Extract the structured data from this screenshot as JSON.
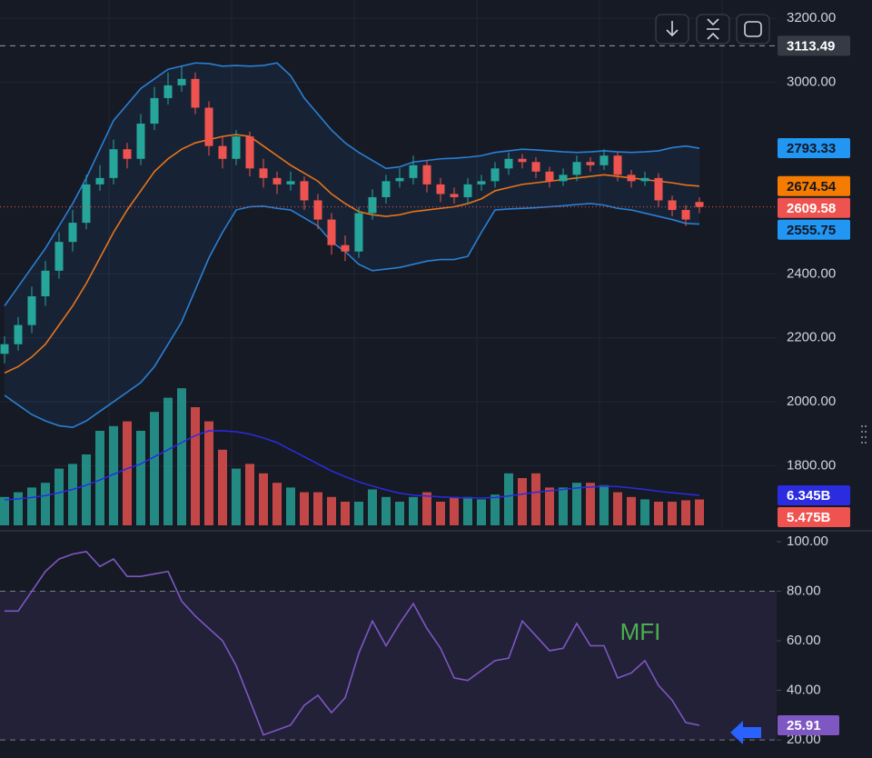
{
  "chart_data": {
    "type": "candlestick",
    "candles": {
      "up_color": "#26a69a",
      "down_color": "#ef5350",
      "open": [
        2150,
        2180,
        2240,
        2330,
        2410,
        2500,
        2560,
        2680,
        2700,
        2790,
        2760,
        2870,
        2950,
        2990,
        3010,
        2920,
        2800,
        2760,
        2830,
        2730,
        2700,
        2680,
        2690,
        2630,
        2570,
        2490,
        2470,
        2590,
        2640,
        2690,
        2700,
        2740,
        2680,
        2650,
        2640,
        2680,
        2690,
        2730,
        2760,
        2750,
        2720,
        2690,
        2710,
        2750,
        2740,
        2770,
        2710,
        2690,
        2700,
        2630,
        2600,
        2625
      ],
      "high": [
        2205,
        2265,
        2360,
        2440,
        2530,
        2600,
        2710,
        2740,
        2820,
        2810,
        2900,
        2985,
        3030,
        3050,
        3030,
        2940,
        2830,
        2850,
        2845,
        2760,
        2720,
        2720,
        2705,
        2650,
        2590,
        2520,
        2610,
        2665,
        2710,
        2730,
        2770,
        2755,
        2700,
        2670,
        2700,
        2710,
        2750,
        2780,
        2775,
        2765,
        2735,
        2730,
        2770,
        2765,
        2790,
        2780,
        2725,
        2720,
        2715,
        2645,
        2615,
        2640
      ],
      "low": [
        2120,
        2160,
        2215,
        2300,
        2385,
        2470,
        2540,
        2660,
        2680,
        2730,
        2740,
        2850,
        2930,
        2970,
        2900,
        2770,
        2730,
        2740,
        2705,
        2670,
        2650,
        2660,
        2600,
        2540,
        2460,
        2440,
        2450,
        2570,
        2620,
        2670,
        2680,
        2655,
        2625,
        2620,
        2620,
        2660,
        2670,
        2710,
        2730,
        2700,
        2670,
        2675,
        2690,
        2720,
        2725,
        2690,
        2670,
        2675,
        2610,
        2580,
        2550,
        2590
      ],
      "close": [
        2180,
        2240,
        2330,
        2410,
        2500,
        2560,
        2680,
        2700,
        2790,
        2760,
        2870,
        2950,
        2990,
        3010,
        2920,
        2800,
        2760,
        2830,
        2730,
        2700,
        2680,
        2690,
        2630,
        2570,
        2490,
        2470,
        2590,
        2640,
        2690,
        2700,
        2740,
        2680,
        2650,
        2640,
        2680,
        2690,
        2730,
        2760,
        2750,
        2720,
        2690,
        2710,
        2750,
        2740,
        2770,
        2710,
        2690,
        2700,
        2630,
        2600,
        2570,
        2609.58
      ]
    },
    "bollinger": {
      "band_color": "#2a7fd4",
      "middle_color": "#e8741a",
      "upper": [
        2300,
        2360,
        2420,
        2480,
        2550,
        2620,
        2700,
        2790,
        2880,
        2930,
        2980,
        3010,
        3040,
        3050,
        3060,
        3058,
        3050,
        3052,
        3050,
        3052,
        3060,
        3020,
        2950,
        2900,
        2850,
        2810,
        2780,
        2755,
        2730,
        2735,
        2750,
        2755,
        2760,
        2762,
        2765,
        2770,
        2780,
        2785,
        2790,
        2788,
        2785,
        2782,
        2780,
        2782,
        2785,
        2782,
        2780,
        2782,
        2785,
        2795,
        2800,
        2793.33
      ],
      "middle": [
        2090,
        2110,
        2140,
        2180,
        2240,
        2300,
        2370,
        2450,
        2530,
        2600,
        2660,
        2720,
        2760,
        2790,
        2810,
        2820,
        2830,
        2836,
        2830,
        2800,
        2770,
        2740,
        2715,
        2690,
        2650,
        2620,
        2595,
        2585,
        2580,
        2585,
        2595,
        2600,
        2605,
        2610,
        2620,
        2635,
        2660,
        2670,
        2680,
        2685,
        2690,
        2695,
        2700,
        2705,
        2710,
        2705,
        2700,
        2695,
        2690,
        2685,
        2678,
        2674.54
      ],
      "lower": [
        2020,
        1990,
        1960,
        1940,
        1925,
        1920,
        1940,
        1970,
        2000,
        2030,
        2060,
        2110,
        2180,
        2250,
        2350,
        2450,
        2530,
        2600,
        2610,
        2612,
        2605,
        2600,
        2575,
        2550,
        2500,
        2470,
        2430,
        2410,
        2415,
        2420,
        2430,
        2440,
        2445,
        2445,
        2455,
        2530,
        2600,
        2603,
        2605,
        2607,
        2610,
        2613,
        2617,
        2620,
        2615,
        2605,
        2600,
        2590,
        2580,
        2570,
        2558,
        2555.75
      ]
    },
    "volume": {
      "values": [
        6,
        7,
        8,
        9,
        12,
        13,
        15,
        20,
        21,
        22,
        20,
        24,
        27,
        29,
        25,
        22,
        16,
        12,
        13,
        11,
        9,
        8,
        7,
        7,
        6,
        5,
        5,
        7.6,
        6,
        5,
        6,
        7,
        5,
        6,
        6,
        5.5,
        6.5,
        11,
        10,
        11,
        8,
        8,
        9,
        9,
        8.5,
        7,
        6,
        5.5,
        5,
        5,
        5.3,
        5.475
      ],
      "value_labels": [
        null,
        null,
        null,
        null,
        null,
        null,
        null,
        null,
        null,
        null,
        null,
        null,
        null,
        null,
        null,
        null,
        null,
        null,
        null,
        null,
        null,
        null,
        null,
        null,
        null,
        null,
        null,
        null,
        null,
        null,
        null,
        null,
        null,
        null,
        null,
        null,
        null,
        null,
        null,
        null,
        null,
        null,
        null,
        null,
        null,
        null,
        null,
        null,
        null,
        null,
        null,
        "5.475B"
      ],
      "ma_color": "#2b2be0",
      "ma": [
        5.4,
        5.6,
        5.9,
        6.3,
        6.9,
        7.6,
        8.5,
        9.6,
        10.8,
        12,
        13,
        14.5,
        16,
        17.5,
        19,
        20,
        20,
        19.8,
        19.3,
        18.5,
        17.5,
        16,
        14.5,
        13,
        11.5,
        10.3,
        9.2,
        8.3,
        7.5,
        6.8,
        6.4,
        6.2,
        6,
        5.9,
        5.8,
        5.8,
        5.9,
        6.2,
        6.6,
        7,
        7.3,
        7.6,
        7.9,
        8.1,
        8.3,
        8.2,
        7.9,
        7.6,
        7.2,
        6.9,
        6.6,
        6.345
      ],
      "ma_labels": [
        null,
        null,
        null,
        null,
        null,
        null,
        null,
        null,
        null,
        null,
        null,
        null,
        null,
        null,
        null,
        null,
        null,
        null,
        null,
        null,
        null,
        null,
        null,
        null,
        null,
        null,
        null,
        null,
        null,
        null,
        null,
        null,
        null,
        null,
        null,
        null,
        null,
        null,
        null,
        null,
        null,
        null,
        null,
        null,
        null,
        null,
        null,
        null,
        null,
        null,
        null,
        "6.345B"
      ]
    },
    "reference_line": 3113.49,
    "ylim": [
      1607.7,
      3256.9
    ],
    "yticks": [
      {
        "value": 3200,
        "label": "3200.00"
      },
      {
        "value": 3000,
        "label": "3000.00"
      },
      {
        "value": 2400,
        "label": "2400.00"
      },
      {
        "value": 2200,
        "label": "2200.00"
      },
      {
        "value": 2000,
        "label": "2000.00"
      },
      {
        "value": 1800,
        "label": "1800.00"
      }
    ],
    "grid": true,
    "mfi": {
      "name": "MFI",
      "color": "#7e57c2",
      "label_color": "#4caf50",
      "values": [
        72,
        72,
        80,
        88,
        93,
        95,
        96,
        90,
        93,
        86,
        86,
        87,
        88,
        76,
        70,
        65,
        60,
        50,
        36,
        22,
        24,
        26,
        34,
        38,
        31,
        37,
        55,
        68,
        58,
        67,
        75,
        65,
        57,
        45,
        44,
        48,
        52,
        53,
        68,
        62,
        56,
        57,
        67,
        58,
        58,
        45,
        47,
        52,
        42,
        36,
        27,
        25.91
      ],
      "levels": [
        80,
        20
      ],
      "ylim": [
        12.7,
        104.4
      ],
      "yticks": [
        {
          "value": 100,
          "label": "100.00"
        },
        {
          "value": 80,
          "label": "80.00"
        },
        {
          "value": 60,
          "label": "60.00"
        },
        {
          "value": 40,
          "label": "40.00"
        },
        {
          "value": 20,
          "label": "20.00"
        }
      ]
    }
  }
}
